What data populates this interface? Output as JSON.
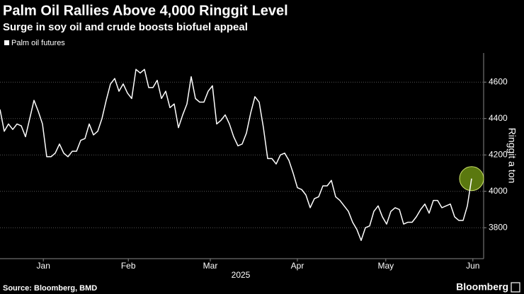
{
  "chart_data": {
    "type": "line",
    "title": "Palm Oil Rallies Above 4,000 Ringgit Level",
    "subtitle": "Surge in soy oil and crude boosts biofuel appeal",
    "y_label": "Ringgit a ton",
    "x_label": "2025",
    "source": "Source: Bloomberg, BMD",
    "brand": "Bloomberg",
    "grid": true,
    "legend": "top-left",
    "ylim": [
      3630,
      4760
    ],
    "yticks": [
      3800,
      4000,
      4200,
      4400,
      4600
    ],
    "xlim": [
      0,
      114
    ],
    "xticks": [
      {
        "value": 10.2,
        "label": "Jan"
      },
      {
        "value": 30.2,
        "label": "Feb"
      },
      {
        "value": 49.5,
        "label": "Mar"
      },
      {
        "value": 70,
        "label": "Apr"
      },
      {
        "value": 90.8,
        "label": "May"
      },
      {
        "value": 111.3,
        "label": "Jun"
      }
    ],
    "series": [
      {
        "name": "Palm oil futures",
        "color": "#ffffff",
        "values": [
          4450,
          4330,
          4370,
          4340,
          4370,
          4360,
          4300,
          4400,
          4500,
          4440,
          4370,
          4190,
          4190,
          4210,
          4260,
          4210,
          4190,
          4220,
          4220,
          4280,
          4290,
          4370,
          4310,
          4330,
          4400,
          4500,
          4590,
          4620,
          4550,
          4590,
          4540,
          4510,
          4670,
          4650,
          4670,
          4570,
          4570,
          4610,
          4510,
          4550,
          4460,
          4480,
          4350,
          4420,
          4480,
          4630,
          4510,
          4490,
          4490,
          4550,
          4580,
          4370,
          4390,
          4420,
          4370,
          4300,
          4250,
          4260,
          4320,
          4430,
          4520,
          4490,
          4350,
          4180,
          4180,
          4150,
          4200,
          4210,
          4170,
          4100,
          4020,
          4010,
          3980,
          3910,
          3960,
          3970,
          4030,
          4030,
          4060,
          3970,
          3950,
          3920,
          3890,
          3830,
          3790,
          3730,
          3800,
          3810,
          3890,
          3920,
          3860,
          3820,
          3890,
          3910,
          3900,
          3820,
          3830,
          3830,
          3860,
          3900,
          3930,
          3880,
          3950,
          3950,
          3910,
          3920,
          3930,
          3860,
          3840,
          3840,
          3920,
          4070
        ]
      }
    ]
  }
}
